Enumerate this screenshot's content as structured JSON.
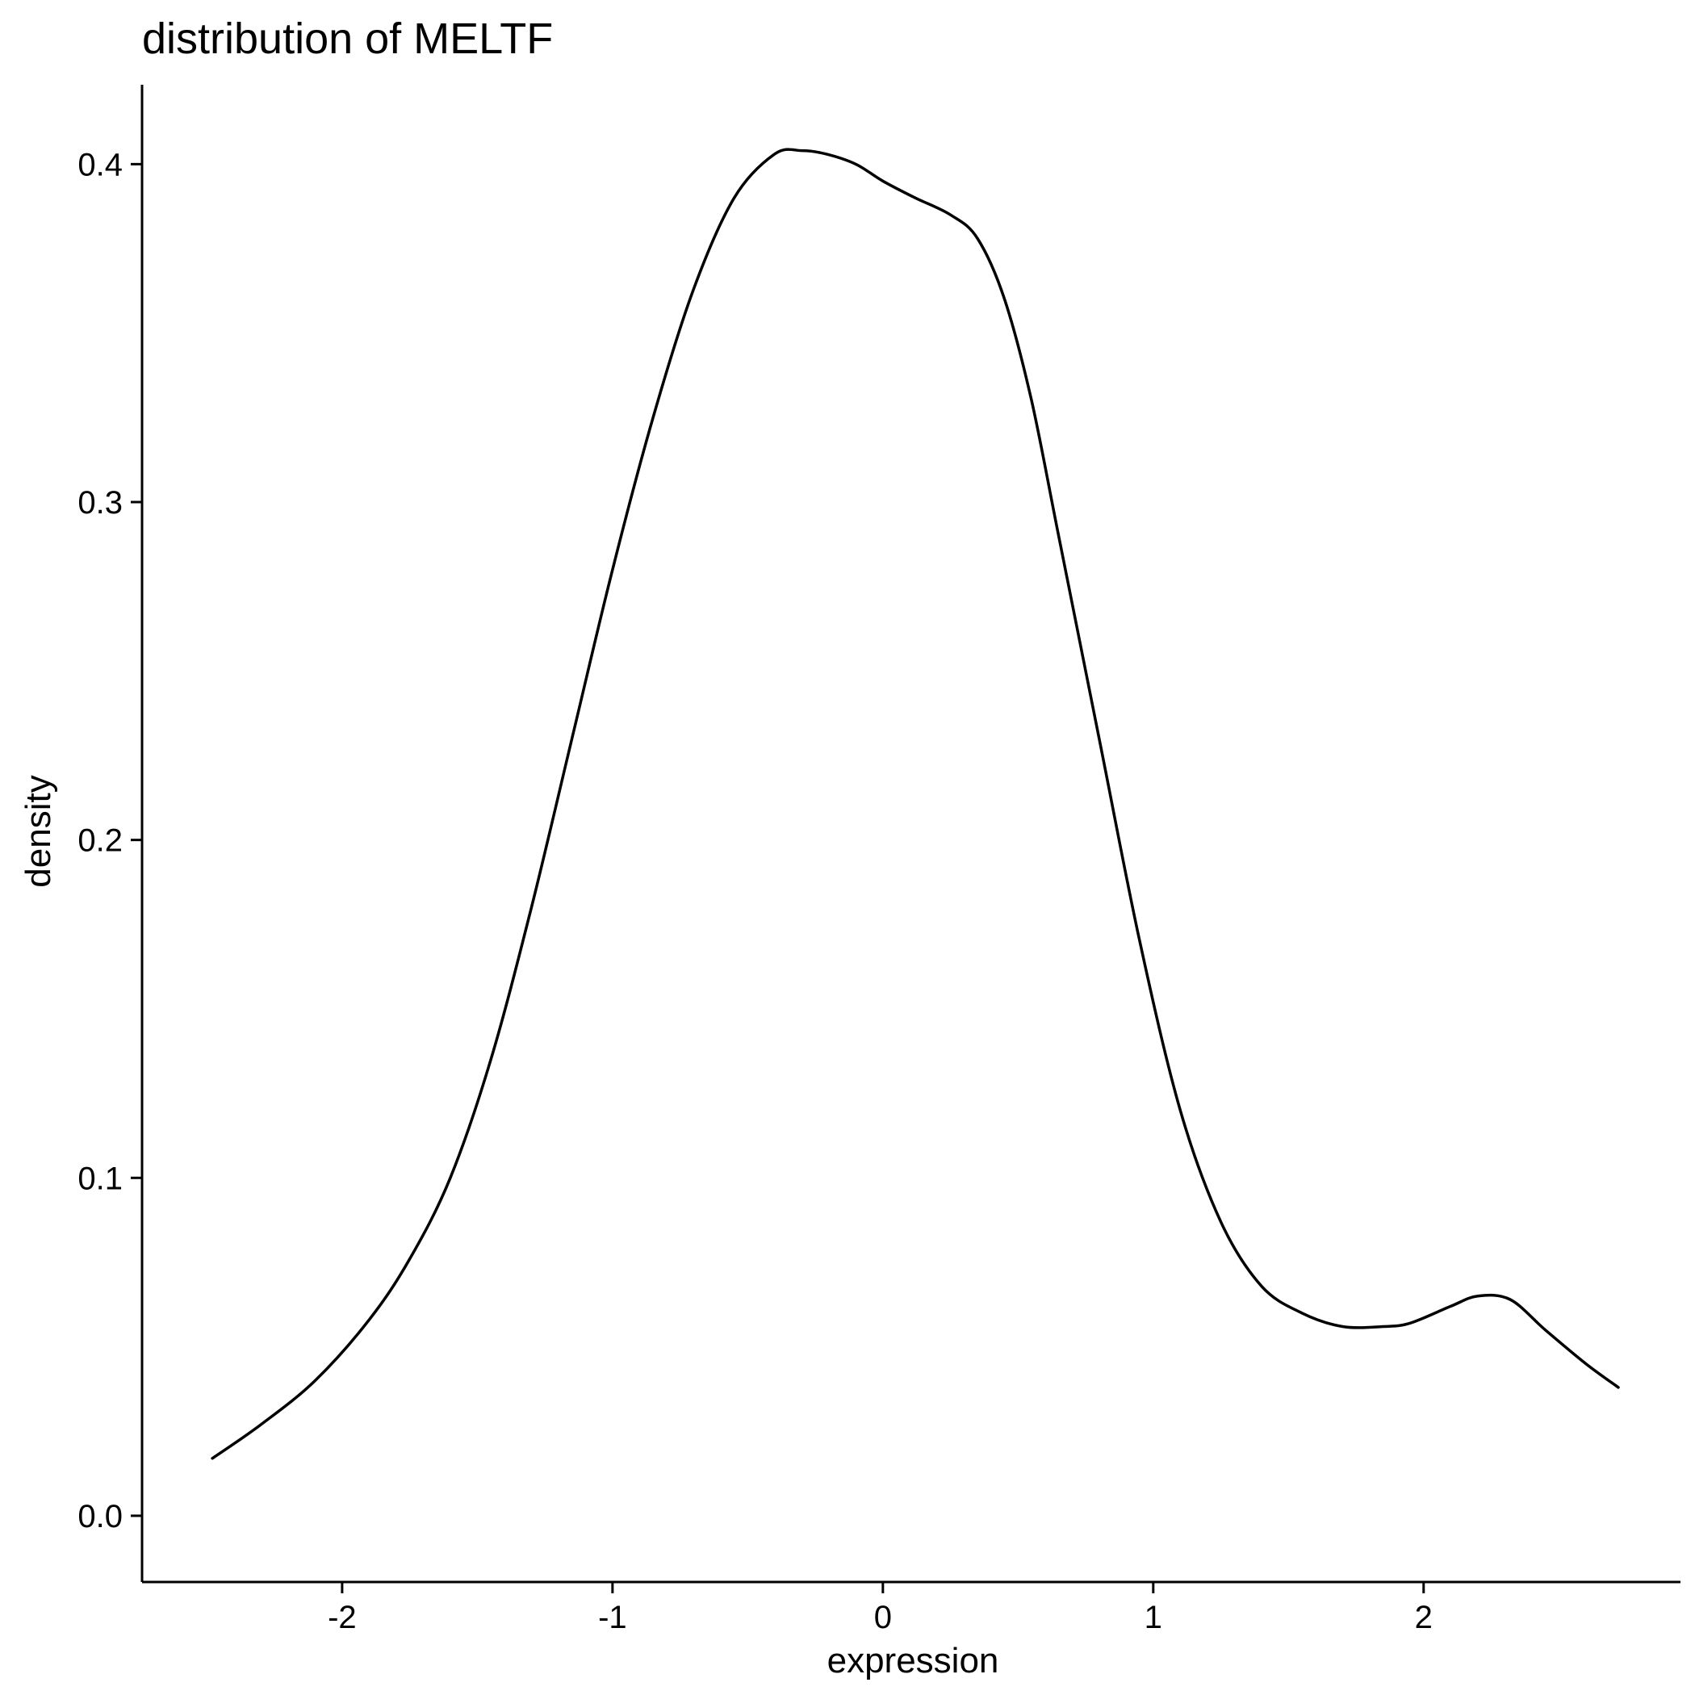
{
  "chart_data": {
    "type": "line",
    "title": "distribution of MELTF",
    "xlabel": "expression",
    "ylabel": "density",
    "xlim": [
      -2.74,
      2.95
    ],
    "ylim": [
      -0.0196,
      0.4235
    ],
    "grid": false,
    "x_ticks": [
      -2,
      -1,
      0,
      1,
      2
    ],
    "x_tick_labels": [
      "-2",
      "-1",
      "0",
      "1",
      "2"
    ],
    "y_ticks": [
      0.0,
      0.1,
      0.2,
      0.3,
      0.4
    ],
    "y_tick_labels": [
      "0.0",
      "0.1",
      "0.2",
      "0.3",
      "0.4"
    ],
    "series": [
      {
        "color": "#000000",
        "x": [
          -2.48,
          -2.3,
          -2.1,
          -1.9,
          -1.75,
          -1.6,
          -1.45,
          -1.3,
          -1.15,
          -1.0,
          -0.85,
          -0.7,
          -0.55,
          -0.4,
          -0.3,
          -0.21,
          -0.1,
          0.0,
          0.12,
          0.25,
          0.35,
          0.45,
          0.55,
          0.65,
          0.8,
          0.95,
          1.1,
          1.25,
          1.4,
          1.55,
          1.7,
          1.85,
          1.95,
          2.1,
          2.2,
          2.32,
          2.45,
          2.6,
          2.72
        ],
        "y": [
          0.017,
          0.027,
          0.04,
          0.058,
          0.076,
          0.1,
          0.135,
          0.18,
          0.23,
          0.28,
          0.325,
          0.363,
          0.39,
          0.403,
          0.404,
          0.403,
          0.4,
          0.395,
          0.39,
          0.385,
          0.378,
          0.36,
          0.33,
          0.29,
          0.23,
          0.17,
          0.12,
          0.087,
          0.068,
          0.06,
          0.056,
          0.056,
          0.057,
          0.062,
          0.065,
          0.064,
          0.055,
          0.045,
          0.038
        ]
      }
    ]
  }
}
